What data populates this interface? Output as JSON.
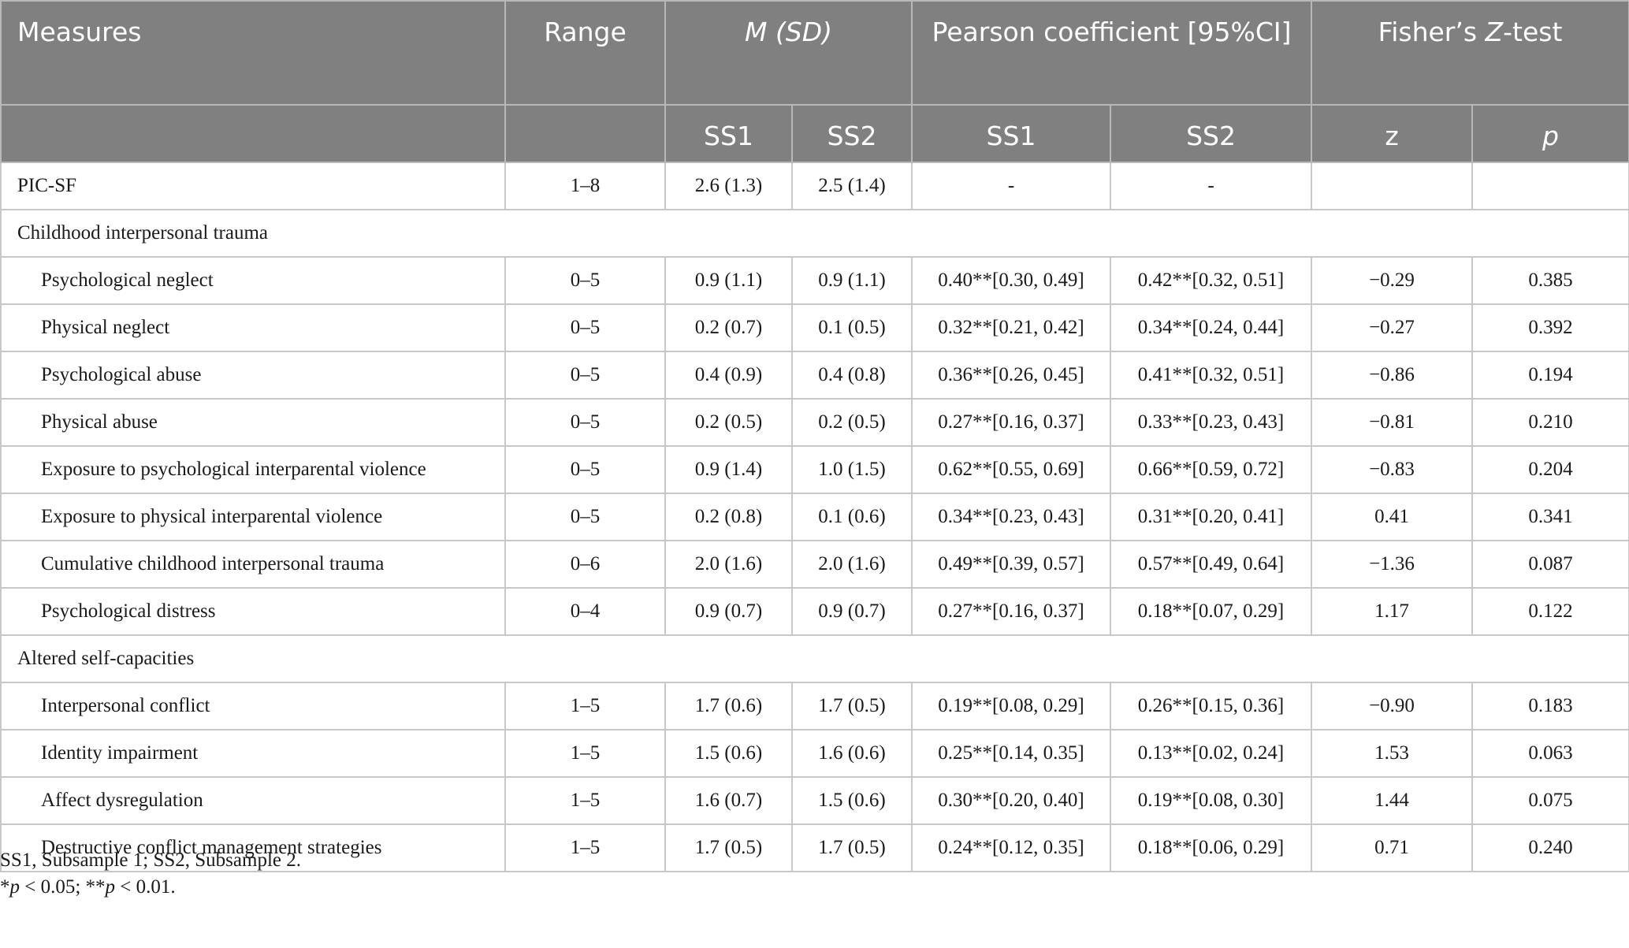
{
  "header": {
    "measures": "Measures",
    "range": "Range",
    "msd_m": "M",
    "msd_sd": "(SD)",
    "pearson": "Pearson coefficient [95%CI]",
    "fisher_pre": "Fisher’s ",
    "fisher_z": "Z",
    "fisher_post": "-test",
    "ss1": "SS1",
    "ss2": "SS2",
    "z": "z",
    "p": "p"
  },
  "rows": [
    {
      "label": "PIC-SF",
      "range": "1–8",
      "m1": "2.6 (1.3)",
      "m2": "2.5 (1.4)",
      "r1": "-",
      "r2": "-",
      "z": "",
      "p": ""
    },
    {
      "section": "Childhood interpersonal trauma"
    },
    {
      "label": "Psychological neglect",
      "range": "0–5",
      "m1": "0.9 (1.1)",
      "m2": "0.9 (1.1)",
      "r1": "0.40**[0.30, 0.49]",
      "r2": "0.42**[0.32, 0.51]",
      "z": "−0.29",
      "p": "0.385"
    },
    {
      "label": "Physical neglect",
      "range": "0–5",
      "m1": "0.2 (0.7)",
      "m2": "0.1 (0.5)",
      "r1": "0.32**[0.21, 0.42]",
      "r2": "0.34**[0.24, 0.44]",
      "z": "−0.27",
      "p": "0.392"
    },
    {
      "label": "Psychological abuse",
      "range": "0–5",
      "m1": "0.4 (0.9)",
      "m2": "0.4 (0.8)",
      "r1": "0.36**[0.26, 0.45]",
      "r2": "0.41**[0.32, 0.51]",
      "z": "−0.86",
      "p": "0.194"
    },
    {
      "label": "Physical abuse",
      "range": "0–5",
      "m1": "0.2 (0.5)",
      "m2": "0.2 (0.5)",
      "r1": "0.27**[0.16, 0.37]",
      "r2": "0.33**[0.23, 0.43]",
      "z": "−0.81",
      "p": "0.210"
    },
    {
      "label": "Exposure to psychological interparental violence",
      "range": "0–5",
      "m1": "0.9 (1.4)",
      "m2": "1.0 (1.5)",
      "r1": "0.62**[0.55, 0.69]",
      "r2": "0.66**[0.59, 0.72]",
      "z": "−0.83",
      "p": "0.204"
    },
    {
      "label": "Exposure to physical interparental violence",
      "range": "0–5",
      "m1": "0.2 (0.8)",
      "m2": "0.1 (0.6)",
      "r1": "0.34**[0.23, 0.43]",
      "r2": "0.31**[0.20, 0.41]",
      "z": "0.41",
      "p": "0.341"
    },
    {
      "label": "Cumulative childhood interpersonal trauma",
      "range": "0–6",
      "m1": "2.0 (1.6)",
      "m2": "2.0 (1.6)",
      "r1": "0.49**[0.39, 0.57]",
      "r2": "0.57**[0.49, 0.64]",
      "z": "−1.36",
      "p": "0.087"
    },
    {
      "label": "Psychological distress",
      "range": "0–4",
      "m1": "0.9 (0.7)",
      "m2": "0.9 (0.7)",
      "r1": "0.27**[0.16, 0.37]",
      "r2": "0.18**[0.07, 0.29]",
      "z": "1.17",
      "p": "0.122"
    },
    {
      "section": "Altered self-capacities"
    },
    {
      "label": "Interpersonal conflict",
      "range": "1–5",
      "m1": "1.7 (0.6)",
      "m2": "1.7 (0.5)",
      "r1": "0.19**[0.08, 0.29]",
      "r2": "0.26**[0.15, 0.36]",
      "z": "−0.90",
      "p": "0.183"
    },
    {
      "label": "Identity impairment",
      "range": "1–5",
      "m1": "1.5 (0.6)",
      "m2": "1.6 (0.6)",
      "r1": "0.25**[0.14, 0.35]",
      "r2": "0.13**[0.02, 0.24]",
      "z": "1.53",
      "p": "0.063"
    },
    {
      "label": "Affect dysregulation",
      "range": "1–5",
      "m1": "1.6 (0.7)",
      "m2": "1.5 (0.6)",
      "r1": "0.30**[0.20, 0.40]",
      "r2": "0.19**[0.08, 0.30]",
      "z": "1.44",
      "p": "0.075"
    },
    {
      "label": "Destructive conflict management strategies",
      "range": "1–5",
      "m1": "1.7 (0.5)",
      "m2": "1.7 (0.5)",
      "r1": "0.24**[0.12, 0.35]",
      "r2": "0.18**[0.06, 0.29]",
      "z": "0.71",
      "p": "0.240"
    }
  ],
  "footnotes": {
    "line1": "SS1, Subsample 1; SS2, Subsample 2.",
    "line2_star": "*",
    "line2_p1": "p",
    "line2_mid": " < 0.05; **",
    "line2_p2": "p",
    "line2_end": " < 0.01."
  }
}
